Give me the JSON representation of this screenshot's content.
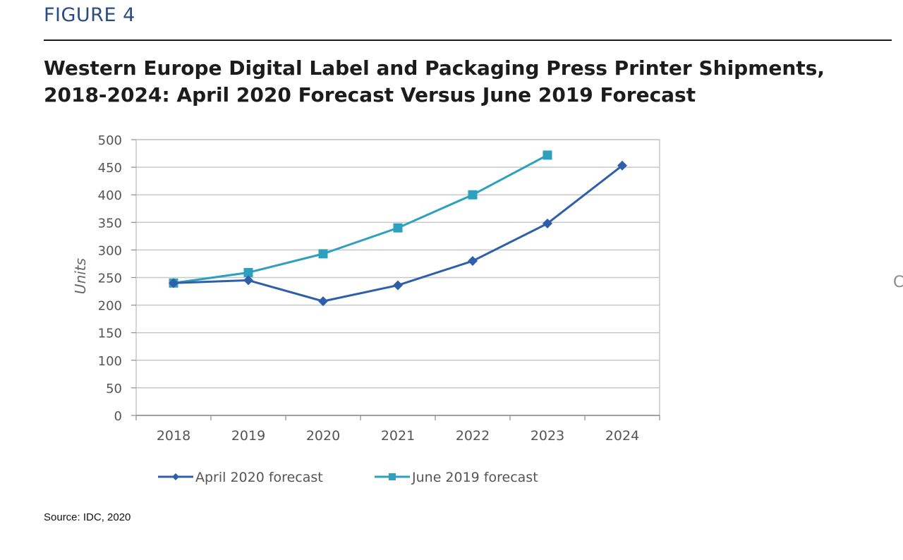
{
  "figure": {
    "label": "FIGURE 4",
    "title": "Western Europe Digital Label and Packaging Press Printer Shipments, 2018-2024: April 2020 Forecast Versus June 2019 Forecast",
    "source": "Source: IDC, 2020"
  },
  "colors": {
    "april": "#2f5fa8",
    "june": "#2ca0bd",
    "grid": "#c8c8c8",
    "axis": "#8c8c8c",
    "tick_text": "#555555"
  },
  "chart_data": {
    "type": "line",
    "title": "Western Europe Digital Label and Packaging Press Printer Shipments, 2018-2024: April 2020 Forecast Versus June 2019 Forecast",
    "xlabel": "",
    "ylabel": "Units",
    "categories": [
      "2018",
      "2019",
      "2020",
      "2021",
      "2022",
      "2023",
      "2024"
    ],
    "ylim": [
      0,
      500
    ],
    "yticks": [
      0,
      50,
      100,
      150,
      200,
      250,
      300,
      350,
      400,
      450,
      500
    ],
    "grid": true,
    "legend_position": "bottom",
    "series": [
      {
        "name": "April 2020 forecast",
        "marker": "diamond",
        "values": [
          240,
          245,
          207,
          236,
          280,
          348,
          453
        ]
      },
      {
        "name": "June 2019 forecast",
        "marker": "square",
        "values": [
          240,
          259,
          293,
          340,
          400,
          472,
          null
        ]
      }
    ]
  }
}
